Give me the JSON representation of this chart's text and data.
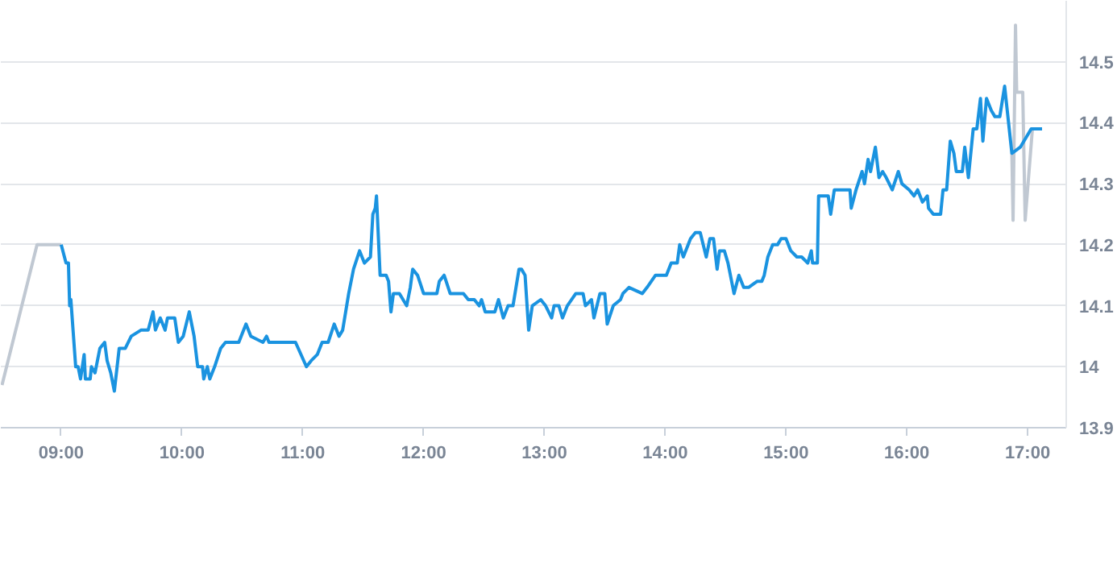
{
  "chart_data": {
    "type": "line",
    "xlim": [
      8.5,
      17.32
    ],
    "ylim": [
      13.9,
      14.6
    ],
    "xticks": [
      {
        "value": 9,
        "label": "09:00"
      },
      {
        "value": 10,
        "label": "10:00"
      },
      {
        "value": 11,
        "label": "11:00"
      },
      {
        "value": 12,
        "label": "12:00"
      },
      {
        "value": 13,
        "label": "13:00"
      },
      {
        "value": 14,
        "label": "14:00"
      },
      {
        "value": 15,
        "label": "15:00"
      },
      {
        "value": 16,
        "label": "16:00"
      },
      {
        "value": 17,
        "label": "17:00"
      }
    ],
    "yticks": [
      13.9,
      14,
      14.1,
      14.2,
      14.3,
      14.4,
      14.5
    ],
    "grid": "y",
    "marker": "none",
    "line_style": "solid",
    "series": [
      {
        "color": "#c0c8d2",
        "x": [
          8.51,
          8.8,
          9.0,
          12.0,
          16.87,
          16.88,
          16.9,
          16.91,
          16.96,
          16.98,
          17.04
        ],
        "values": [
          13.97,
          14.2,
          14.2,
          null,
          14.35,
          14.24,
          14.56,
          14.45,
          14.45,
          14.24,
          14.39
        ]
      },
      {
        "color": "#1a93e0",
        "x": [
          9.0,
          9.04,
          9.06,
          9.07,
          9.08,
          9.12,
          9.14,
          9.16,
          9.19,
          9.2,
          9.24,
          9.25,
          9.28,
          9.32,
          9.36,
          9.38,
          9.41,
          9.44,
          9.48,
          9.53,
          9.58,
          9.66,
          9.68,
          9.72,
          9.76,
          9.78,
          9.82,
          9.86,
          9.88,
          9.94,
          9.97,
          10.01,
          10.06,
          10.1,
          10.13,
          10.17,
          10.18,
          10.21,
          10.23,
          10.27,
          10.32,
          10.36,
          10.47,
          10.53,
          10.57,
          10.67,
          10.7,
          10.72,
          10.94,
          11.03,
          11.07,
          11.12,
          11.16,
          11.21,
          11.26,
          11.3,
          11.33,
          11.38,
          11.42,
          11.47,
          11.51,
          11.56,
          11.58,
          11.6,
          11.61,
          11.64,
          11.69,
          11.71,
          11.73,
          11.75,
          11.8,
          11.86,
          11.89,
          11.91,
          11.95,
          12.0,
          12.11,
          12.13,
          12.17,
          12.22,
          12.33,
          12.37,
          12.42,
          12.46,
          12.48,
          12.51,
          12.59,
          12.62,
          12.66,
          12.7,
          12.74,
          12.79,
          12.81,
          12.84,
          12.87,
          12.9,
          12.97,
          13.01,
          13.06,
          13.08,
          13.12,
          13.15,
          13.19,
          13.26,
          13.32,
          13.34,
          13.39,
          13.41,
          13.46,
          13.5,
          13.52,
          13.57,
          13.63,
          13.65,
          13.7,
          13.81,
          13.85,
          13.92,
          14.01,
          14.05,
          14.1,
          14.12,
          14.15,
          14.21,
          14.25,
          14.29,
          14.34,
          14.37,
          14.4,
          14.43,
          14.45,
          14.49,
          14.52,
          14.57,
          14.61,
          14.65,
          14.69,
          14.76,
          14.8,
          14.82,
          14.85,
          14.89,
          14.93,
          14.96,
          15.0,
          15.04,
          15.09,
          15.13,
          15.18,
          15.21,
          15.22,
          15.26,
          15.27,
          15.35,
          15.37,
          15.4,
          15.53,
          15.54,
          15.58,
          15.63,
          15.65,
          15.68,
          15.7,
          15.74,
          15.77,
          15.8,
          15.83,
          15.88,
          15.93,
          15.96,
          16.02,
          16.06,
          16.09,
          16.13,
          16.17,
          16.18,
          16.22,
          16.28,
          16.3,
          16.33,
          16.36,
          16.39,
          16.41,
          16.46,
          16.48,
          16.51,
          16.55,
          16.58,
          16.61,
          16.63,
          16.66,
          16.7,
          16.73,
          16.77,
          16.81,
          16.87,
          16.94,
          17.03,
          17.12
        ],
        "values": [
          14.2,
          14.17,
          14.17,
          14.1,
          14.11,
          14.0,
          14.0,
          13.98,
          14.02,
          13.98,
          13.98,
          14.0,
          13.99,
          14.03,
          14.04,
          14.01,
          13.99,
          13.96,
          14.03,
          14.03,
          14.05,
          14.06,
          14.06,
          14.06,
          14.09,
          14.06,
          14.08,
          14.06,
          14.08,
          14.08,
          14.04,
          14.05,
          14.09,
          14.05,
          14.0,
          14.0,
          13.98,
          14.0,
          13.98,
          14.0,
          14.03,
          14.04,
          14.04,
          14.07,
          14.05,
          14.04,
          14.05,
          14.04,
          14.04,
          14.0,
          14.01,
          14.02,
          14.04,
          14.04,
          14.07,
          14.05,
          14.06,
          14.12,
          14.16,
          14.19,
          14.17,
          14.18,
          14.25,
          14.26,
          14.28,
          14.15,
          14.15,
          14.14,
          14.09,
          14.12,
          14.12,
          14.1,
          14.13,
          14.16,
          14.15,
          14.12,
          14.12,
          14.14,
          14.15,
          14.12,
          14.12,
          14.11,
          14.11,
          14.1,
          14.11,
          14.09,
          14.09,
          14.11,
          14.08,
          14.1,
          14.1,
          14.16,
          14.16,
          14.15,
          14.06,
          14.1,
          14.11,
          14.1,
          14.08,
          14.1,
          14.1,
          14.08,
          14.1,
          14.12,
          14.12,
          14.1,
          14.11,
          14.08,
          14.12,
          14.12,
          14.07,
          14.1,
          14.11,
          14.12,
          14.13,
          14.12,
          14.13,
          14.15,
          14.15,
          14.17,
          14.17,
          14.2,
          14.18,
          14.21,
          14.22,
          14.22,
          14.18,
          14.21,
          14.21,
          14.16,
          14.19,
          14.19,
          14.17,
          14.12,
          14.15,
          14.13,
          14.13,
          14.14,
          14.14,
          14.15,
          14.18,
          14.2,
          14.2,
          14.21,
          14.21,
          14.19,
          14.18,
          14.18,
          14.17,
          14.19,
          14.17,
          14.17,
          14.28,
          14.28,
          14.25,
          14.29,
          14.29,
          14.26,
          14.29,
          14.32,
          14.3,
          14.34,
          14.32,
          14.36,
          14.31,
          14.32,
          14.31,
          14.29,
          14.32,
          14.3,
          14.29,
          14.28,
          14.29,
          14.27,
          14.28,
          14.26,
          14.25,
          14.25,
          14.29,
          14.29,
          14.37,
          14.35,
          14.32,
          14.32,
          14.36,
          14.31,
          14.39,
          14.39,
          14.44,
          14.37,
          14.44,
          14.42,
          14.41,
          14.41,
          14.46,
          14.35,
          14.36,
          14.39,
          14.39
        ]
      }
    ]
  }
}
